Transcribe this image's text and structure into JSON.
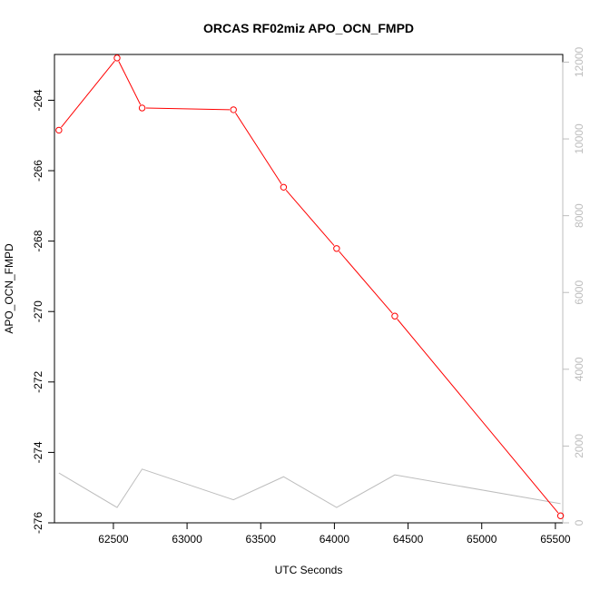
{
  "chart_data": {
    "type": "line",
    "title": "ORCAS RF02miz APO_OCN_FMPD",
    "xlabel": "UTC Seconds",
    "ylabel": "APO_OCN_FMPD",
    "xlim": [
      62100,
      65550
    ],
    "ylim": [
      -276,
      -262.7
    ],
    "y2lim": [
      0,
      12200
    ],
    "x_ticks": [
      62500,
      63000,
      63500,
      64000,
      64500,
      65000,
      65500
    ],
    "y_ticks": [
      -276,
      -274,
      -272,
      -270,
      -268,
      -266,
      -264
    ],
    "y2_ticks": [
      0,
      2000,
      4000,
      6000,
      8000,
      10000,
      12000
    ],
    "series": [
      {
        "color": "#ff0000",
        "axis": "left",
        "markers": true,
        "x": [
          62130,
          62525,
          62695,
          63315,
          63655,
          64015,
          64410,
          65535
        ],
        "y": [
          -264.85,
          -262.8,
          -264.22,
          -264.27,
          -266.47,
          -268.21,
          -270.13,
          -275.8
        ]
      },
      {
        "color": "#bdbdbd",
        "axis": "right",
        "markers": false,
        "x": [
          62130,
          62525,
          62695,
          63315,
          63655,
          64015,
          64410,
          65535
        ],
        "y": [
          1300,
          400,
          1400,
          600,
          1200,
          400,
          1250,
          500
        ]
      }
    ],
    "grid": false,
    "legend": "none"
  }
}
